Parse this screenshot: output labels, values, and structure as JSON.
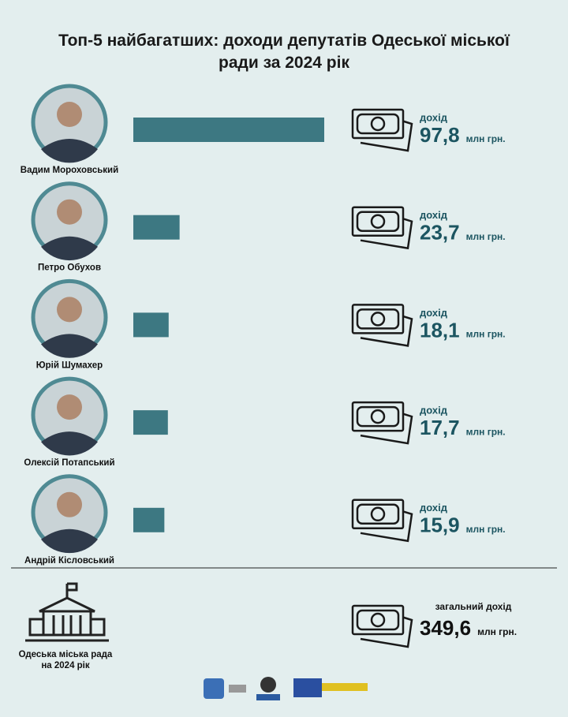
{
  "chart_data": {
    "type": "bar",
    "title": "Топ-5 найбагатших: доходи депутатів Одеської міської ради за 2024 рік",
    "categories": [
      "Вадим Мороховський",
      "Петро Обухов",
      "Юрій Шумахер",
      "Олексій Потапський",
      "Андрій Кісловський"
    ],
    "values": [
      97.8,
      23.7,
      18.1,
      17.7,
      15.9
    ],
    "value_labels": [
      "97,8",
      "23,7",
      "18,1",
      "17,7",
      "15,9"
    ],
    "income_label": "дохід",
    "unit": "млн грн.",
    "color": "#3d7882",
    "total": {
      "label": "загальний дохід",
      "value": 349.6,
      "value_label": "349,6",
      "entity_lines": [
        "Одеська міська рада",
        "на 2024 рік"
      ]
    }
  }
}
